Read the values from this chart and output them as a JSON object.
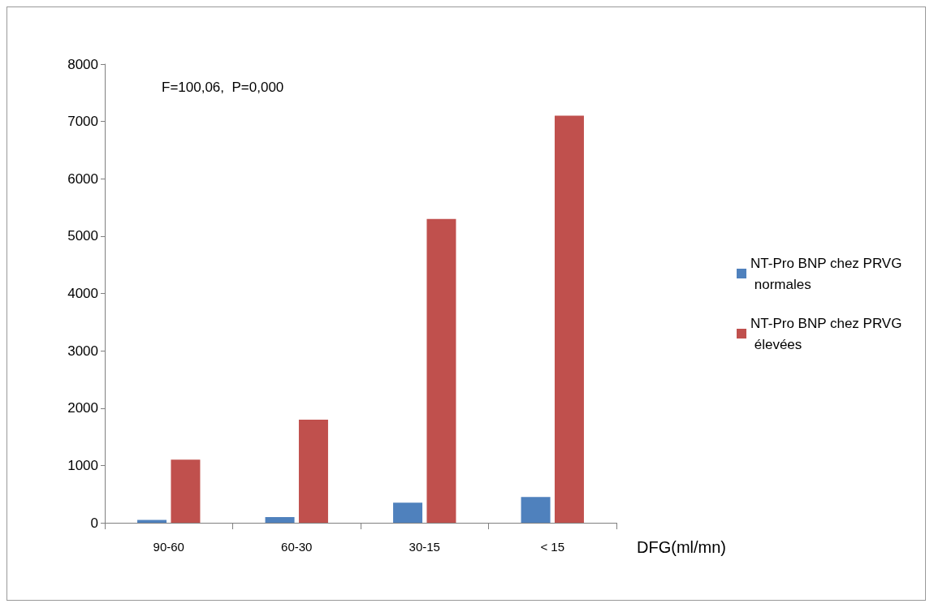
{
  "chart_data": {
    "type": "bar",
    "xlabel": "DFG(ml/mn)",
    "categories": [
      "90-60",
      "60-30",
      "30-15",
      "< 15"
    ],
    "series": [
      {
        "name": "NT-Pro BNP chez PRVG normales",
        "color": "#4f81bd",
        "values": [
          50,
          100,
          350,
          450
        ]
      },
      {
        "name": "NT-Pro BNP chez PRVG élevées",
        "color": "#c0504d",
        "values": [
          1100,
          1800,
          5300,
          7100
        ]
      }
    ],
    "ylim": [
      0,
      8000
    ],
    "yticks": [
      0,
      1000,
      2000,
      3000,
      4000,
      5000,
      6000,
      7000,
      8000
    ],
    "grid": false,
    "legend": "right",
    "annotations": [
      "F=100,06,  P=0,000"
    ]
  }
}
